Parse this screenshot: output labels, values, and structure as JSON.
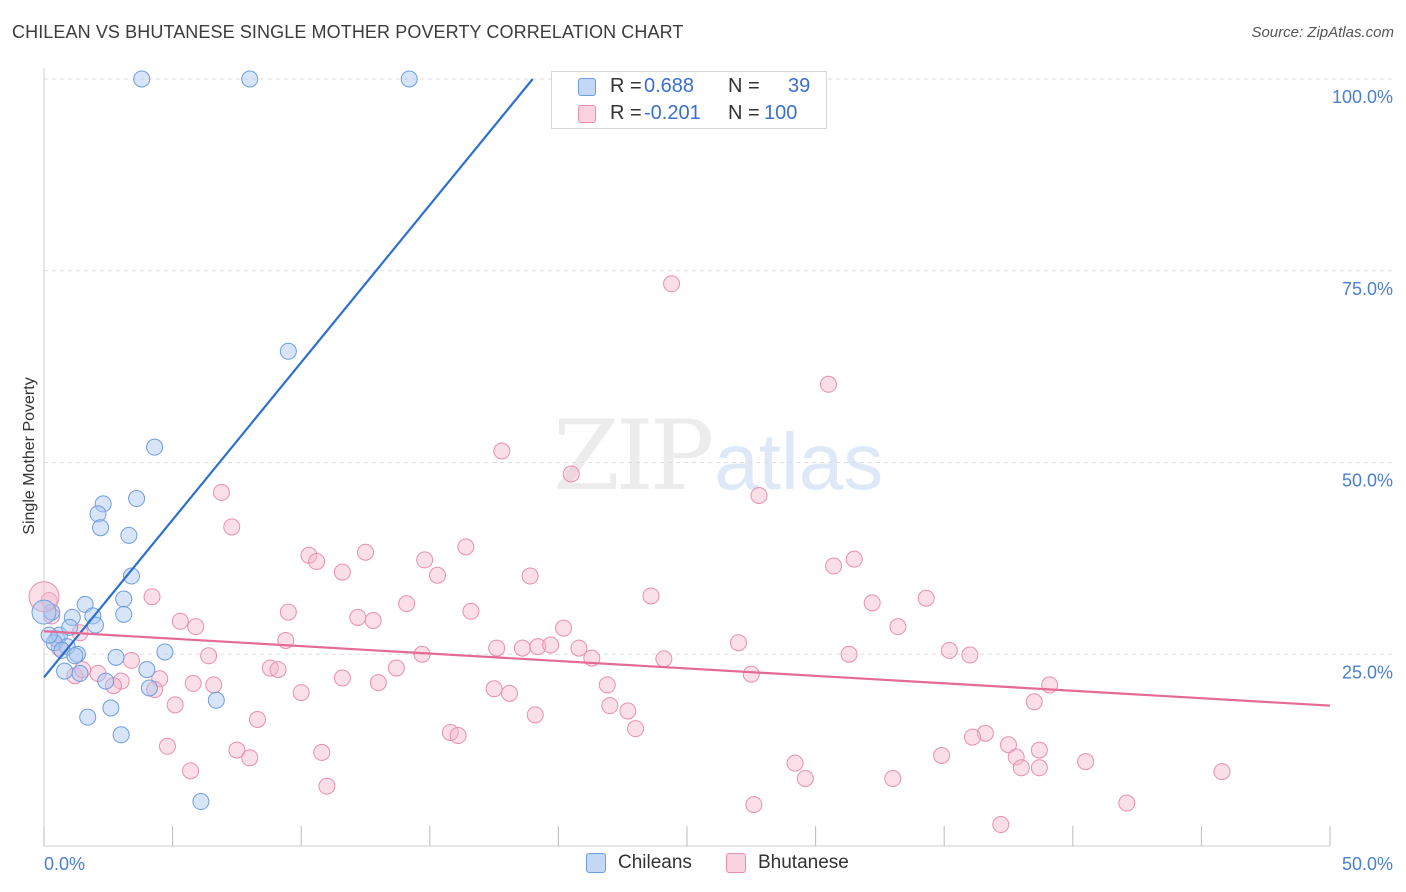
{
  "header": {
    "title": "CHILEAN VS BHUTANESE SINGLE MOTHER POVERTY CORRELATION CHART",
    "source": "Source: ZipAtlas.com"
  },
  "watermark": {
    "zip": "ZIP",
    "atlas": "atlas"
  },
  "legend": {
    "rows": [
      {
        "r_label": "R =",
        "r_value": "0.688",
        "n_label": "N =",
        "n_value": "39",
        "color": "#a8c6f0"
      },
      {
        "r_label": "R =",
        "r_value": "-0.201",
        "n_label": "N =",
        "n_value": "100",
        "color": "#f5b8cd"
      }
    ]
  },
  "bottom_legend": {
    "chileans": "Chileans",
    "bhutanese": "Bhutanese"
  },
  "colors": {
    "chilean_fill": "#a8c6f0",
    "chilean_stroke": "#6e9de0",
    "chilean_line": "#2f6fd0",
    "bhutanese_fill": "#f5b8cd",
    "bhutanese_stroke": "#e98fae",
    "bhutanese_line": "#e36b96",
    "tick": "#4a7fd0",
    "grid": "#dedede"
  },
  "chart_data": {
    "type": "scatter",
    "title": "CHILEAN VS BHUTANESE SINGLE MOTHER POVERTY CORRELATION CHART",
    "xlabel": "",
    "ylabel": "Single Mother Poverty",
    "xlim": [
      0,
      50
    ],
    "ylim": [
      0,
      100
    ],
    "x_tick_labels": [
      "0.0%",
      "50.0%"
    ],
    "y_tick_labels": [
      "25.0%",
      "50.0%",
      "75.0%",
      "100.0%"
    ],
    "y_ticks": [
      25,
      50,
      75,
      100
    ],
    "grid": true,
    "legend_position": "top-center",
    "series": [
      {
        "name": "Chileans",
        "r": 0.688,
        "n": 39,
        "trend": {
          "x": [
            0,
            19.0
          ],
          "y": [
            22.0,
            100
          ]
        },
        "points": [
          [
            3.8,
            100
          ],
          [
            8.0,
            100
          ],
          [
            14.2,
            100
          ],
          [
            9.5,
            64.5
          ],
          [
            4.3,
            52.0
          ],
          [
            3.6,
            45.3
          ],
          [
            2.3,
            44.6
          ],
          [
            2.1,
            43.3
          ],
          [
            2.2,
            41.5
          ],
          [
            3.3,
            40.5
          ],
          [
            3.4,
            35.2
          ],
          [
            1.6,
            31.5
          ],
          [
            3.1,
            32.2
          ],
          [
            1.9,
            30.0
          ],
          [
            3.1,
            30.2
          ],
          [
            2.0,
            28.8
          ],
          [
            1.1,
            29.8
          ],
          [
            0.3,
            30.5
          ],
          [
            0.5,
            27.0
          ],
          [
            0.6,
            27.5
          ],
          [
            1.0,
            28.5
          ],
          [
            0.4,
            26.5
          ],
          [
            0.9,
            26.0
          ],
          [
            0.7,
            25.5
          ],
          [
            1.3,
            25.0
          ],
          [
            1.2,
            24.8
          ],
          [
            2.8,
            24.6
          ],
          [
            4.7,
            25.3
          ],
          [
            4.0,
            23.0
          ],
          [
            0.8,
            22.8
          ],
          [
            1.4,
            22.5
          ],
          [
            2.4,
            21.5
          ],
          [
            4.1,
            20.6
          ],
          [
            6.7,
            19.0
          ],
          [
            2.6,
            18.0
          ],
          [
            1.7,
            16.8
          ],
          [
            3.0,
            14.5
          ],
          [
            6.1,
            5.8
          ],
          [
            0.2,
            27.5
          ]
        ]
      },
      {
        "name": "Bhutanese",
        "r": -0.201,
        "n": 100,
        "trend": {
          "x": [
            0,
            50
          ],
          "y": [
            28.0,
            18.3
          ]
        },
        "points": [
          [
            24.4,
            73.3
          ],
          [
            30.5,
            60.2
          ],
          [
            17.8,
            51.5
          ],
          [
            20.5,
            48.5
          ],
          [
            27.8,
            45.7
          ],
          [
            6.9,
            46.1
          ],
          [
            7.3,
            41.6
          ],
          [
            16.4,
            39.0
          ],
          [
            12.5,
            38.3
          ],
          [
            10.3,
            37.9
          ],
          [
            14.8,
            37.3
          ],
          [
            10.6,
            37.1
          ],
          [
            31.5,
            37.4
          ],
          [
            30.7,
            36.5
          ],
          [
            11.6,
            35.7
          ],
          [
            15.3,
            35.3
          ],
          [
            18.9,
            35.2
          ],
          [
            4.2,
            32.5
          ],
          [
            23.6,
            32.6
          ],
          [
            32.2,
            31.7
          ],
          [
            34.3,
            32.3
          ],
          [
            14.1,
            31.6
          ],
          [
            16.6,
            30.6
          ],
          [
            9.5,
            30.5
          ],
          [
            12.2,
            29.8
          ],
          [
            12.8,
            29.4
          ],
          [
            5.3,
            29.3
          ],
          [
            5.9,
            28.6
          ],
          [
            33.2,
            28.6
          ],
          [
            20.2,
            28.4
          ],
          [
            9.4,
            26.8
          ],
          [
            27.0,
            26.5
          ],
          [
            17.6,
            25.8
          ],
          [
            18.6,
            25.8
          ],
          [
            19.2,
            26.0
          ],
          [
            19.7,
            26.2
          ],
          [
            20.8,
            25.8
          ],
          [
            35.2,
            25.5
          ],
          [
            31.3,
            25.0
          ],
          [
            14.7,
            25.0
          ],
          [
            6.4,
            24.8
          ],
          [
            36.0,
            24.9
          ],
          [
            21.3,
            24.5
          ],
          [
            24.1,
            24.4
          ],
          [
            3.4,
            24.2
          ],
          [
            8.8,
            23.2
          ],
          [
            9.1,
            23.0
          ],
          [
            13.7,
            23.2
          ],
          [
            2.1,
            22.5
          ],
          [
            27.5,
            22.4
          ],
          [
            11.6,
            21.9
          ],
          [
            4.5,
            21.8
          ],
          [
            3.0,
            21.5
          ],
          [
            5.8,
            21.2
          ],
          [
            2.7,
            20.9
          ],
          [
            13.0,
            21.3
          ],
          [
            6.6,
            21.0
          ],
          [
            21.9,
            21.0
          ],
          [
            17.5,
            20.5
          ],
          [
            4.3,
            20.4
          ],
          [
            10.0,
            20.0
          ],
          [
            18.1,
            19.9
          ],
          [
            39.1,
            21.0
          ],
          [
            38.5,
            18.8
          ],
          [
            5.1,
            18.4
          ],
          [
            22.0,
            18.3
          ],
          [
            22.7,
            17.6
          ],
          [
            19.1,
            17.1
          ],
          [
            8.3,
            16.5
          ],
          [
            23.0,
            15.3
          ],
          [
            15.8,
            14.8
          ],
          [
            16.1,
            14.4
          ],
          [
            36.6,
            14.7
          ],
          [
            36.1,
            14.2
          ],
          [
            37.5,
            13.2
          ],
          [
            4.8,
            13.0
          ],
          [
            7.5,
            12.5
          ],
          [
            10.8,
            12.2
          ],
          [
            8.0,
            11.5
          ],
          [
            38.7,
            12.5
          ],
          [
            34.9,
            11.8
          ],
          [
            37.8,
            11.6
          ],
          [
            40.5,
            11.0
          ],
          [
            29.2,
            10.8
          ],
          [
            38.0,
            10.2
          ],
          [
            38.7,
            10.2
          ],
          [
            5.7,
            9.8
          ],
          [
            33.0,
            8.8
          ],
          [
            29.6,
            8.8
          ],
          [
            45.8,
            9.7
          ],
          [
            11.0,
            7.8
          ],
          [
            27.6,
            5.4
          ],
          [
            42.1,
            5.6
          ],
          [
            37.2,
            2.8
          ],
          [
            1.2,
            22.2
          ],
          [
            1.5,
            23.0
          ],
          [
            0.6,
            25.8
          ],
          [
            1.4,
            27.8
          ],
          [
            0.3,
            30.0
          ],
          [
            0.2,
            32.0
          ]
        ]
      }
    ]
  }
}
